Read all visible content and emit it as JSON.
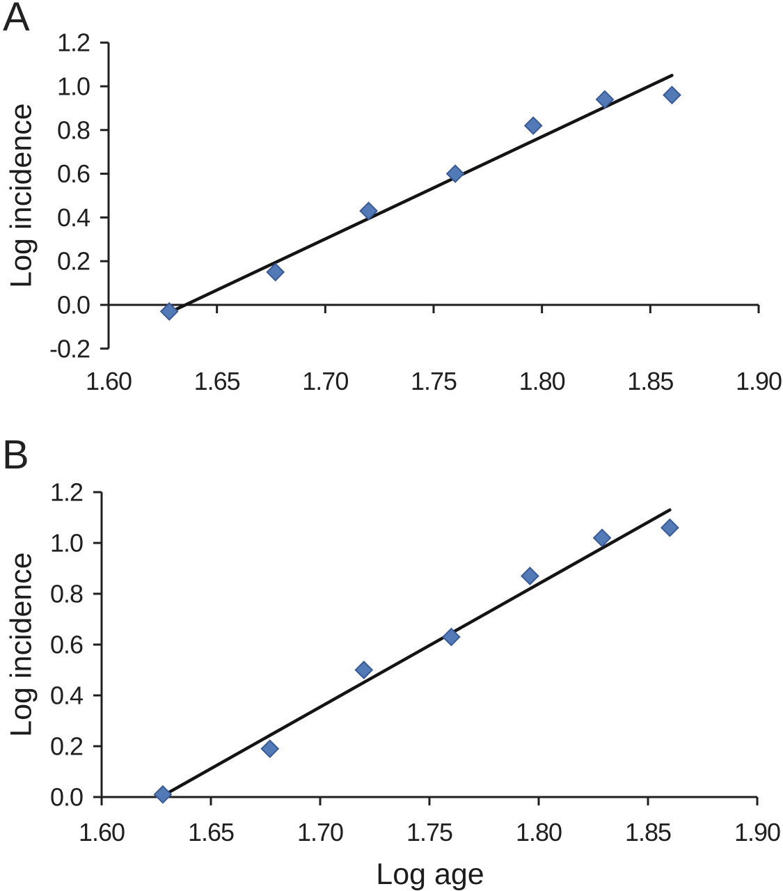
{
  "figure": {
    "panels": [
      {
        "label": "A"
      },
      {
        "label": "B"
      }
    ]
  },
  "chart_data": [
    {
      "type": "scatter",
      "panel": "A",
      "title": "",
      "xlabel": "",
      "ylabel": "Log incidence",
      "x": [
        1.628,
        1.677,
        1.72,
        1.76,
        1.796,
        1.829,
        1.86
      ],
      "y": [
        -0.03,
        0.15,
        0.43,
        0.6,
        0.82,
        0.94,
        0.96
      ],
      "trendline": {
        "x1": 1.628,
        "y1": -0.035,
        "x2": 1.86,
        "y2": 1.05
      },
      "xlim": [
        1.6,
        1.9
      ],
      "ylim": [
        -0.2,
        1.2
      ],
      "x_ticks": [
        "1.60",
        "1.65",
        "1.70",
        "1.75",
        "1.80",
        "1.85",
        "1.90"
      ],
      "y_ticks": [
        "-0.2",
        "0.0",
        "0.2",
        "0.4",
        "0.6",
        "0.8",
        "1.0",
        "1.2"
      ],
      "grid": false,
      "legend": "none",
      "marker": "diamond",
      "marker_fill": "#527ab7",
      "marker_edge": "#3a5a96",
      "line_color": "#141414",
      "axis_color": "#1f1f1f"
    },
    {
      "type": "scatter",
      "panel": "B",
      "title": "",
      "xlabel": "Log age",
      "ylabel": "Log incidence",
      "x": [
        1.628,
        1.677,
        1.72,
        1.76,
        1.796,
        1.829,
        1.86
      ],
      "y": [
        0.01,
        0.19,
        0.5,
        0.63,
        0.87,
        1.02,
        1.06
      ],
      "trendline": {
        "x1": 1.628,
        "y1": 0.005,
        "x2": 1.86,
        "y2": 1.13
      },
      "xlim": [
        1.6,
        1.9
      ],
      "ylim": [
        0.0,
        1.2
      ],
      "x_ticks": [
        "1.60",
        "1.65",
        "1.70",
        "1.75",
        "1.80",
        "1.85",
        "1.90"
      ],
      "y_ticks": [
        "0.0",
        "0.2",
        "0.4",
        "0.6",
        "0.8",
        "1.0",
        "1.2"
      ],
      "grid": false,
      "legend": "none",
      "marker": "diamond",
      "marker_fill": "#527ab7",
      "marker_edge": "#3a5a96",
      "line_color": "#141414",
      "axis_color": "#1f1f1f"
    }
  ]
}
